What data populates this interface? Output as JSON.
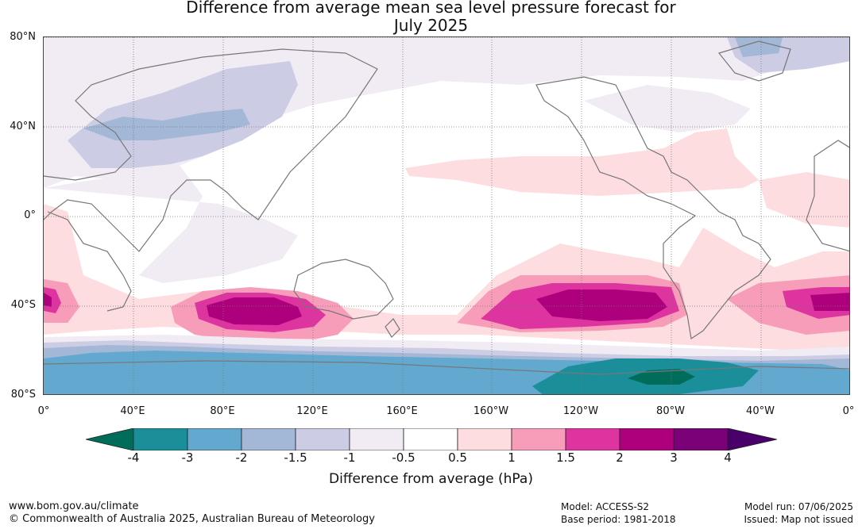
{
  "title_line1": "Difference from average mean sea level pressure forecast for",
  "title_line2": "July 2025",
  "lat_labels": [
    "80°N",
    "40°N",
    "0°",
    "40°S",
    "80°S"
  ],
  "lon_labels": [
    "0°",
    "40°E",
    "80°E",
    "120°E",
    "160°E",
    "160°W",
    "120°W",
    "80°W",
    "40°W",
    "0°"
  ],
  "legend": {
    "ticks": [
      "-4",
      "-3",
      "-2",
      "-1.5",
      "-1",
      "-0.5",
      "0.5",
      "1",
      "1.5",
      "2",
      "3",
      "4"
    ],
    "colors": [
      "#006d5b",
      "#1b8f99",
      "#62a8cf",
      "#a3b7d7",
      "#cccde4",
      "#f1ebf4",
      "#ffffff",
      "#fddddf",
      "#f79db9",
      "#dd34a0",
      "#ae007d",
      "#7a0177",
      "#49006a"
    ],
    "title": "Difference from average (hPa)"
  },
  "footer": {
    "website": "www.bom.gov.au/climate",
    "copyright": "© Commonwealth of Australia 2025, Australian Bureau of Meteorology",
    "model": "Model: ACCESS-S2",
    "base_period": "Base period: 1981-2018",
    "model_run": "Model run: 07/06/2025",
    "issued": "Issued: Map not issued"
  }
}
